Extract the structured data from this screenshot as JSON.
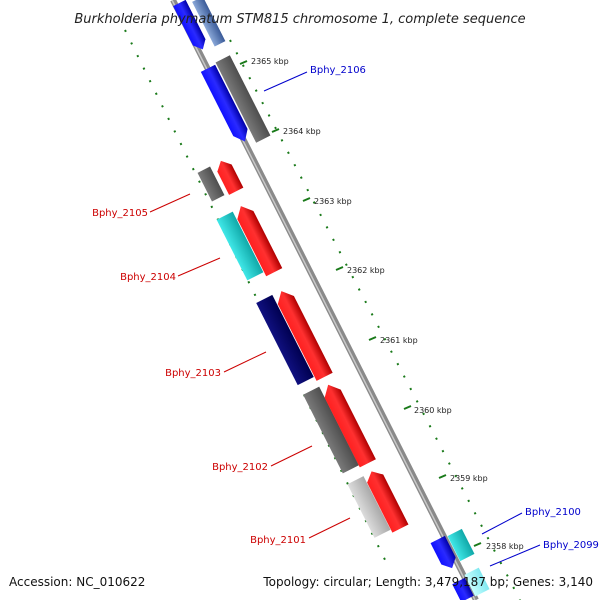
{
  "title": "Burkholderia phymatum STM815 chromosome 1, complete sequence",
  "accession": "Accession: NC_010622",
  "topology": "Topology: circular; Length: 3,479,187 bp; Genes: 3,140",
  "ticks": [
    "2365 kbp",
    "2364 kbp",
    "2363 kbp",
    "2362 kbp",
    "2361 kbp",
    "2360 kbp",
    "2359 kbp",
    "2358 kbp"
  ],
  "genes": [
    {
      "label": "Bphy_2106",
      "color": "#0000cc"
    },
    {
      "label": "Bphy_2105",
      "color": "#cc0000"
    },
    {
      "label": "Bphy_2104",
      "color": "#cc0000"
    },
    {
      "label": "Bphy_2103",
      "color": "#cc0000"
    },
    {
      "label": "Bphy_2102",
      "color": "#cc0000"
    },
    {
      "label": "Bphy_2101",
      "color": "#cc0000"
    },
    {
      "label": "Bphy_2100",
      "color": "#0000cc"
    },
    {
      "label": "Bphy_2099",
      "color": "#0000cc"
    }
  ]
}
